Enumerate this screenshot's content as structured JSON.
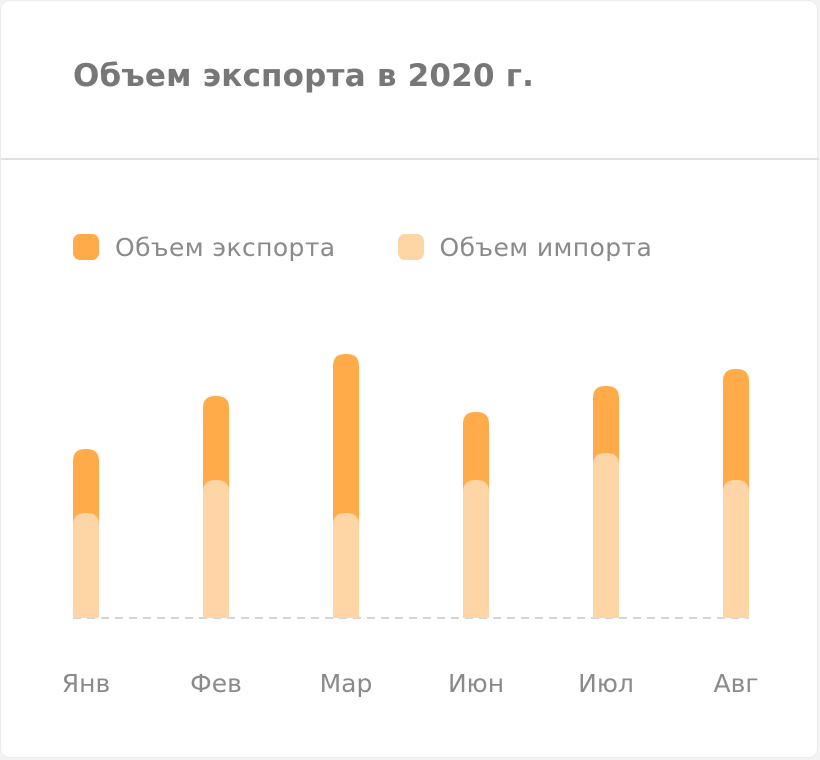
{
  "title": "Объем экспорта в 2020 г.",
  "colors": {
    "export": "#ffab4a",
    "import": "#fed5a5",
    "baseline": "#d5d5d5",
    "text": "#8a8a8a",
    "title": "#777777"
  },
  "legend": [
    {
      "label": "Объем экспорта",
      "color": "#ffab4a"
    },
    {
      "label": "Объем импорта",
      "color": "#fed5a5"
    }
  ],
  "chart_data": {
    "type": "bar",
    "stacked": true,
    "categories": [
      "Янв",
      "Фев",
      "Мар",
      "Июн",
      "Июл",
      "Авг"
    ],
    "series": [
      {
        "name": "Объем импорта",
        "values": [
          105,
          138,
          105,
          138,
          165,
          138
        ]
      },
      {
        "name": "Объем экспорта",
        "values": [
          64,
          84,
          159,
          68,
          67,
          111
        ]
      }
    ],
    "title": "Объем экспорта в 2020 г.",
    "xlabel": "",
    "ylabel": "",
    "ylim": [
      0,
      280
    ],
    "grid": false,
    "legend_position": "top-left"
  }
}
